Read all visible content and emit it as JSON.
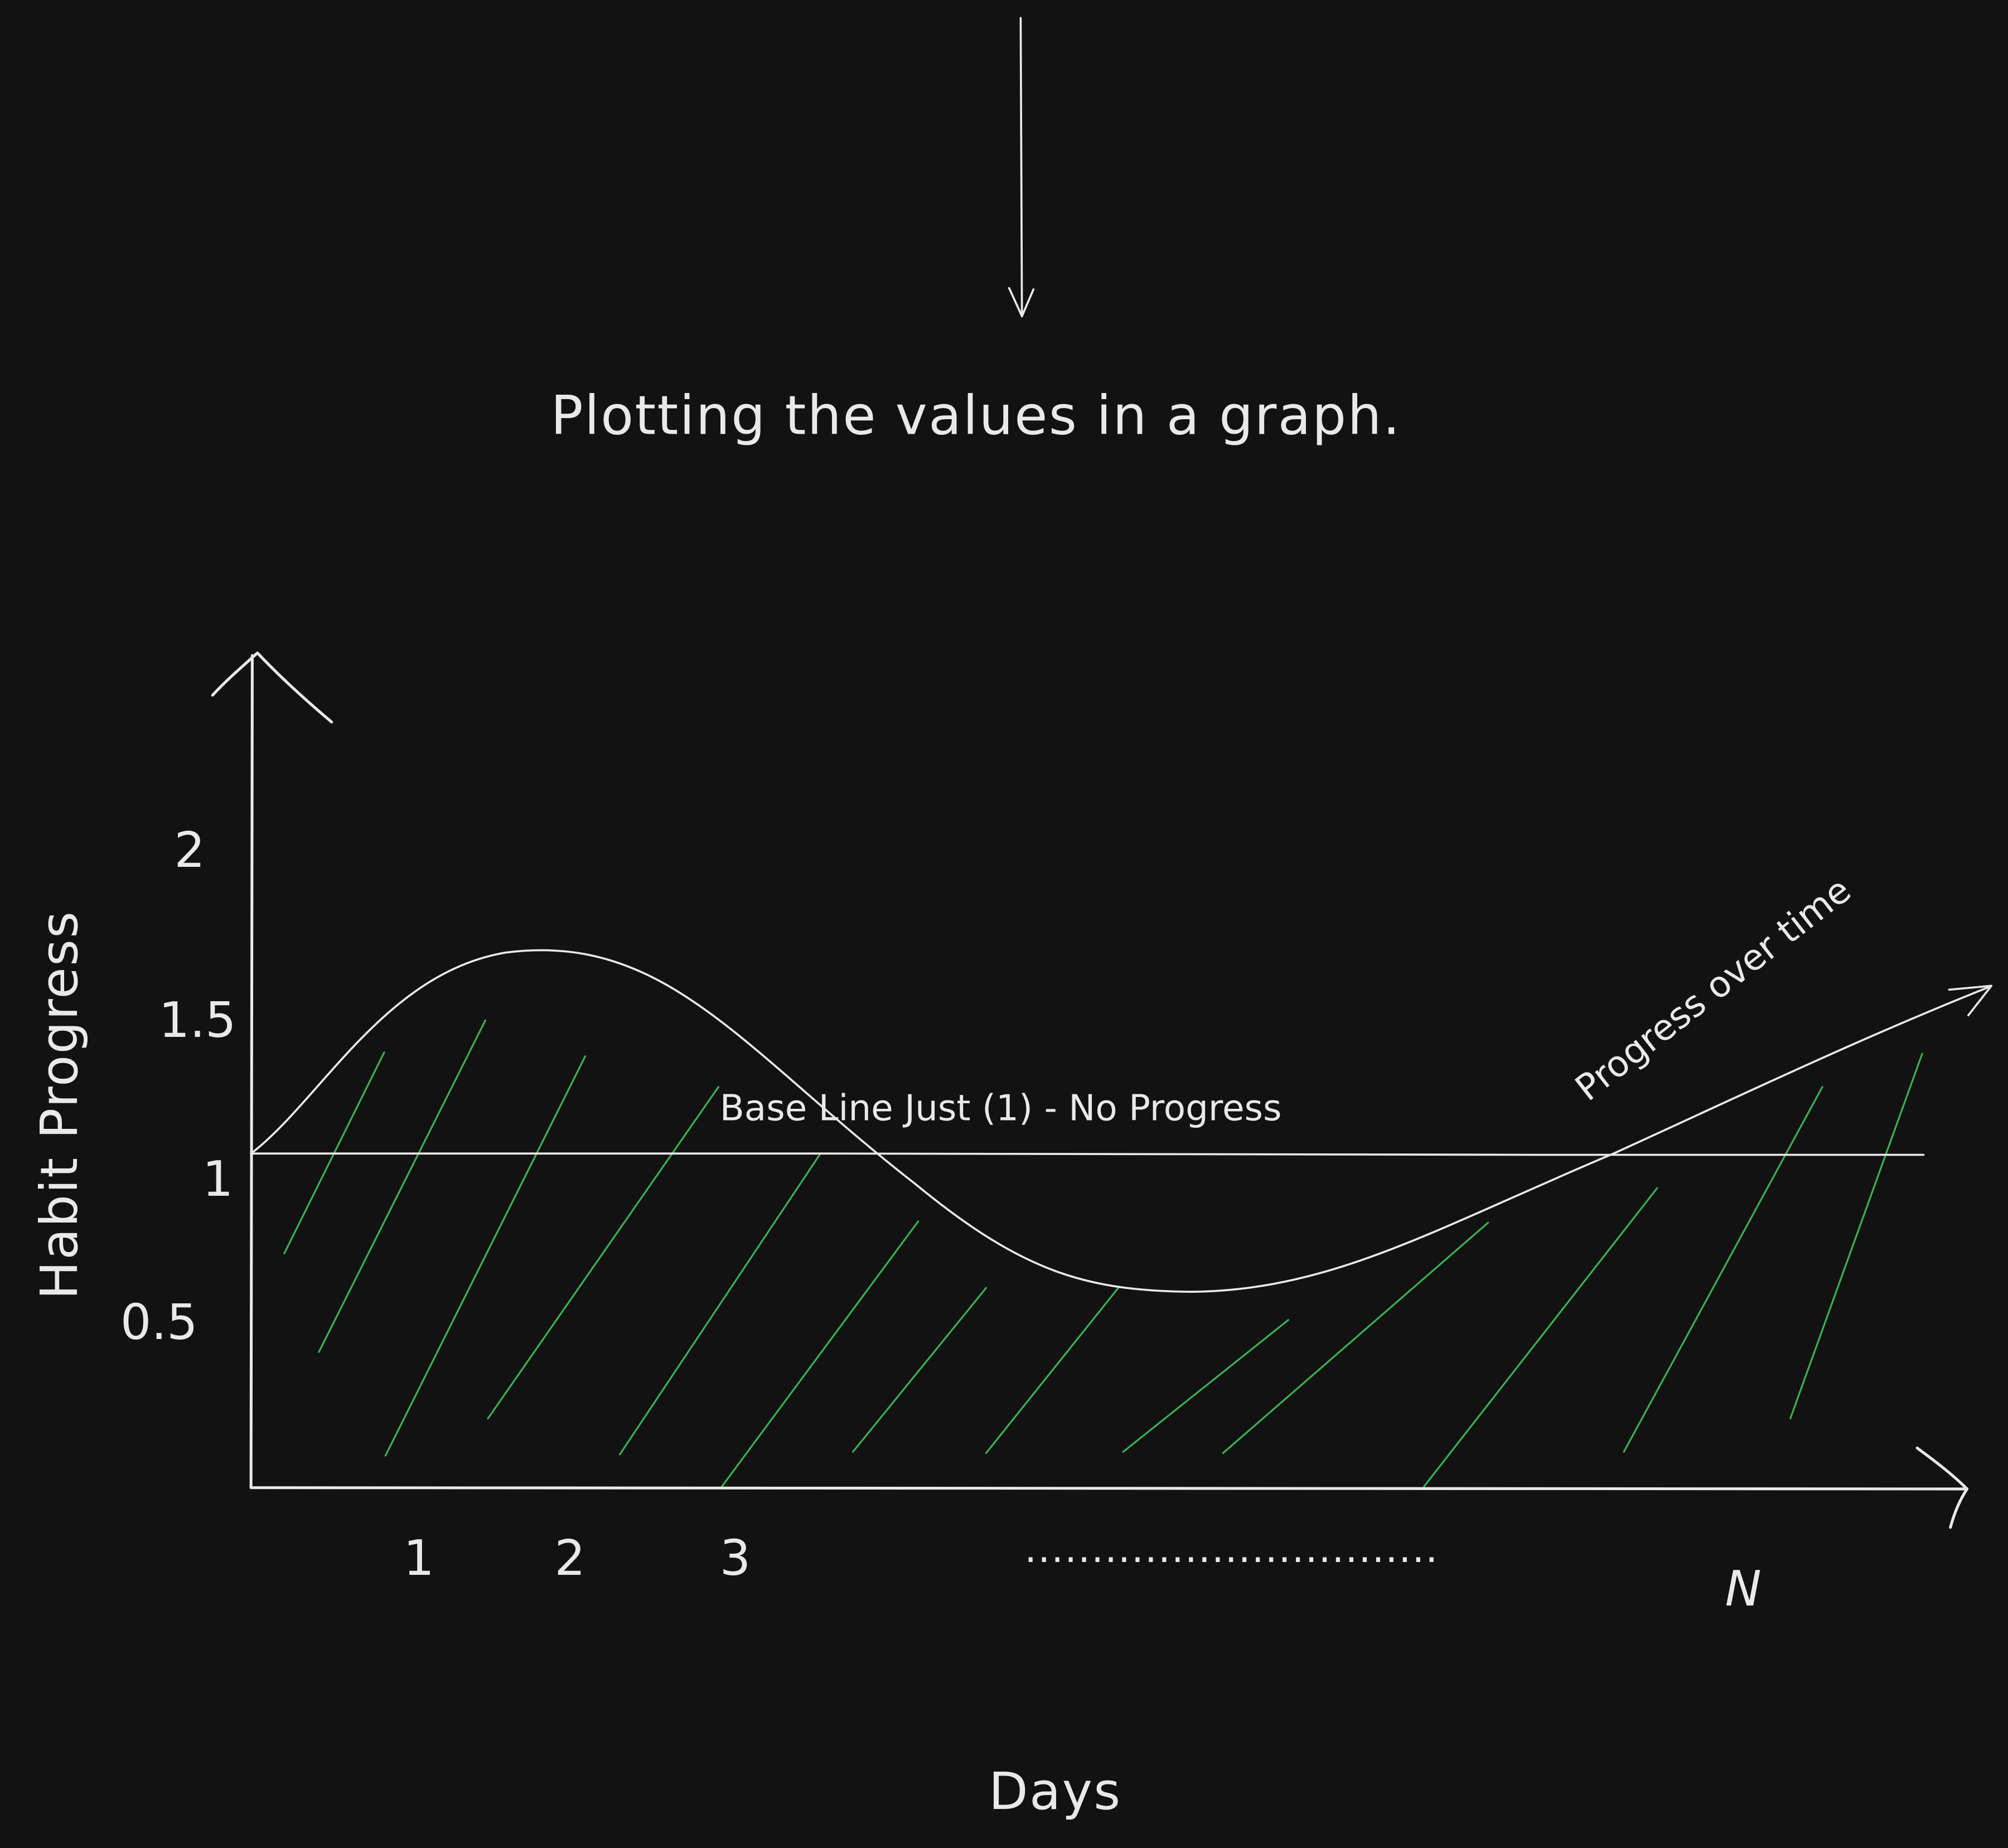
{
  "title": "Plotting the values in a graph.",
  "colors": {
    "background": "#121212",
    "ink": "#e9e9e9",
    "hatch": "#3bb04f"
  },
  "icons": {
    "top_arrow": "down-arrow-icon"
  },
  "chart_data": {
    "type": "line",
    "xlabel": "Days",
    "ylabel": "Habit Progress",
    "x_ticks": [
      "1",
      "2",
      "3",
      "N"
    ],
    "x_ellipsis": "...............................",
    "y_ticks": [
      "2",
      "1.5",
      "1",
      "0.5"
    ],
    "baseline": {
      "value": 1,
      "label": "Base Line  Just (1) - No Progress"
    },
    "trend": {
      "label": "Progress over time"
    },
    "curve_shape": "rises from 1 to about 1.6, dips to about 0.7, then rises above 1",
    "area_under_curve_hatched": true
  }
}
